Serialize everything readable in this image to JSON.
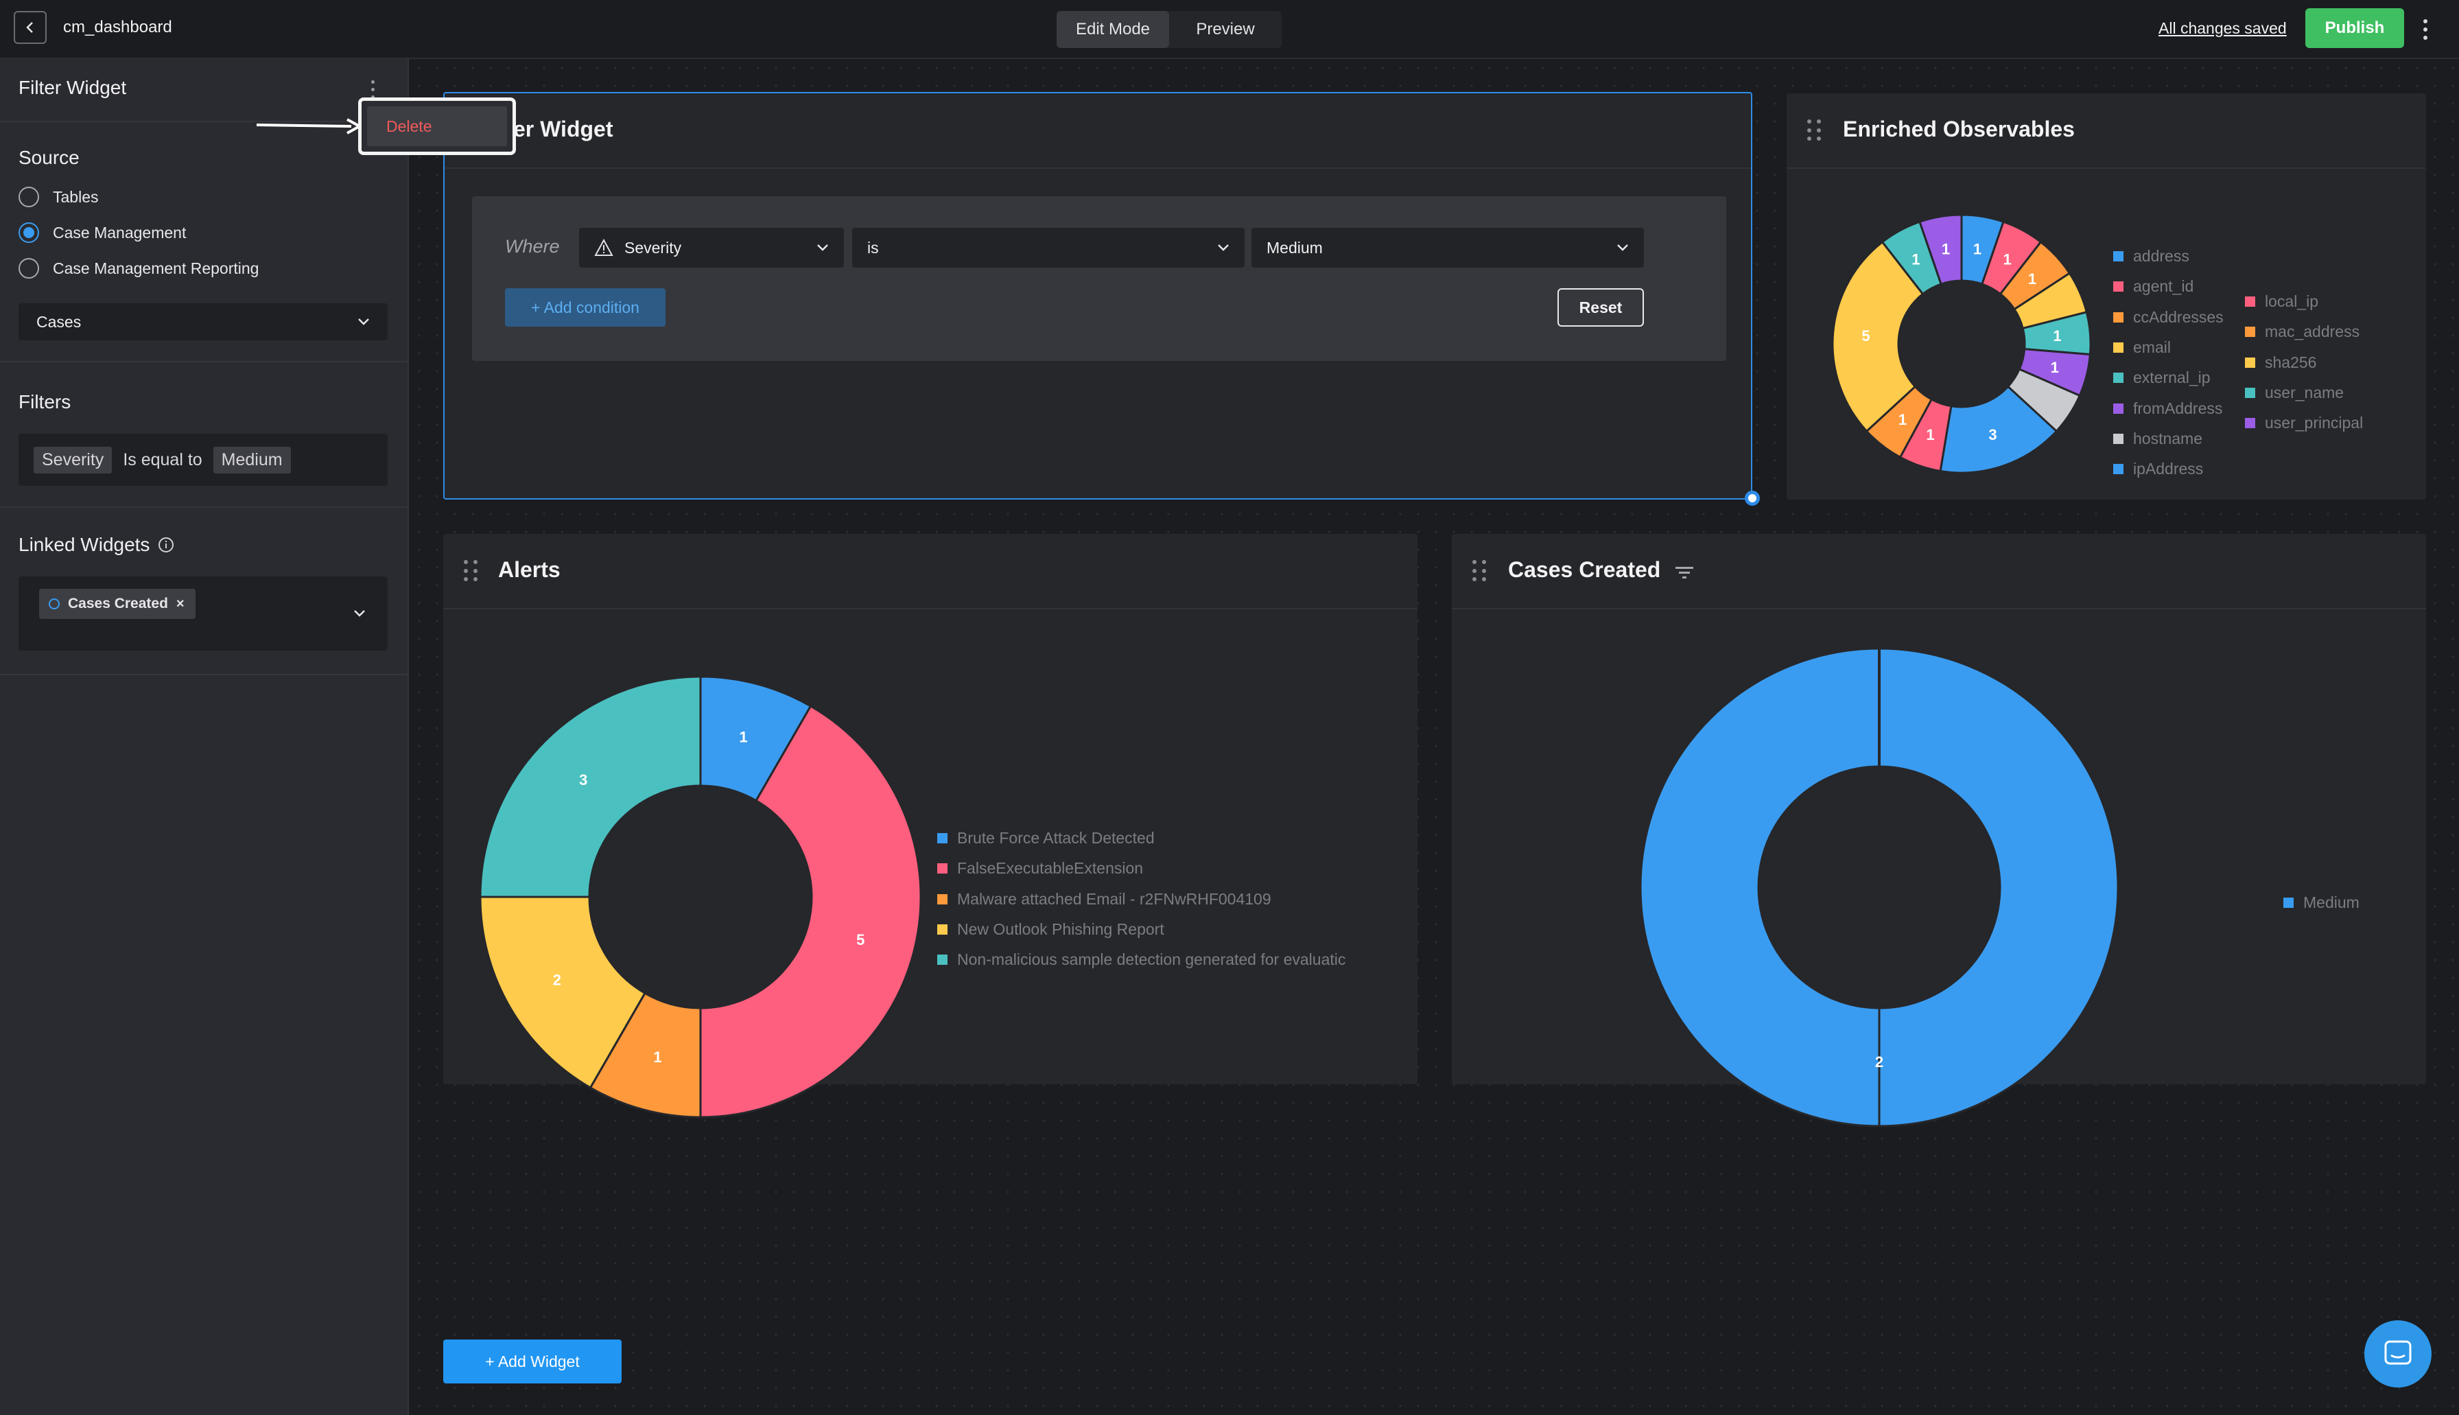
{
  "topbar": {
    "dashboard_name": "cm_dashboard",
    "modes": [
      "Edit Mode",
      "Preview"
    ],
    "active_mode": "Edit Mode",
    "save_status": "All changes saved",
    "publish_label": "Publish"
  },
  "sidebar": {
    "title": "Filter Widget",
    "source_label": "Source",
    "sources": [
      "Tables",
      "Case Management",
      "Case Management Reporting"
    ],
    "selected_source": "Case Management",
    "table_select": "Cases",
    "filters_label": "Filters",
    "filter": {
      "field": "Severity",
      "operator": "Is equal to",
      "value": "Medium"
    },
    "linked_label": "Linked Widgets",
    "linked_widgets": [
      "Cases Created"
    ],
    "menu": {
      "delete_label": "Delete"
    }
  },
  "filter_widget": {
    "title": "Filter Widget",
    "where_label": "Where",
    "field": "Severity",
    "operator": "is",
    "value": "Medium",
    "add_condition_label": "+ Add condition",
    "reset_label": "Reset"
  },
  "widgets": {
    "enriched": {
      "title": "Enriched Observables"
    },
    "alerts": {
      "title": "Alerts"
    },
    "cases": {
      "title": "Cases Created"
    }
  },
  "add_widget_label": "+ Add Widget",
  "colors": {
    "accent": "#2196f3",
    "publish": "#3fbf61",
    "delete": "#f05a5a",
    "blue": "#3a9cf0",
    "pink": "#ff5f7e",
    "orange": "#ff9a3c",
    "yellow": "#ffcb4c",
    "teal": "#4bc0c0",
    "purple": "#9b5de5",
    "grey": "#c9cbcf"
  },
  "chart_data": [
    {
      "type": "pie",
      "title": "Enriched Observables",
      "categories": [
        "address",
        "agent_id",
        "ccAddresses",
        "email",
        "external_ip",
        "fromAddress",
        "hostname",
        "ipAddress",
        "local_ip",
        "mac_address",
        "sha256",
        "user_name",
        "user_principal"
      ],
      "slices": [
        {
          "label": "ipAddress",
          "value": 1,
          "show": "1"
        },
        {
          "label": "local_ip",
          "value": 1,
          "show": "1"
        },
        {
          "label": "mac_address",
          "value": 1,
          "show": "1"
        },
        {
          "label": "sha256",
          "value": 1,
          "show": ""
        },
        {
          "label": "user_name",
          "value": 1,
          "show": "1"
        },
        {
          "label": "user_principal",
          "value": 1,
          "show": "1"
        },
        {
          "label": "hostname",
          "value": 1,
          "show": ""
        },
        {
          "label": "ipAddress",
          "value": 3,
          "show": "3"
        },
        {
          "label": "agent_id",
          "value": 1,
          "show": "1"
        },
        {
          "label": "ccAddresses",
          "value": 1,
          "show": "1"
        },
        {
          "label": "email",
          "value": 5,
          "show": "5"
        },
        {
          "label": "external_ip",
          "value": 1,
          "show": "1"
        },
        {
          "label": "fromAddress",
          "value": 1,
          "show": "1"
        }
      ]
    },
    {
      "type": "pie",
      "title": "Alerts",
      "categories": [
        "Brute Force Attack Detected",
        "FalseExecutableExtension",
        "Malware attached Email - r2FNwRHF004109",
        "New Outlook Phishing Report",
        "Non-malicious sample detection generated for evaluatic"
      ],
      "values": [
        1,
        5,
        1,
        2,
        3
      ]
    },
    {
      "type": "pie",
      "title": "Cases Created",
      "categories": [
        "Medium"
      ],
      "values": [
        2
      ]
    }
  ]
}
